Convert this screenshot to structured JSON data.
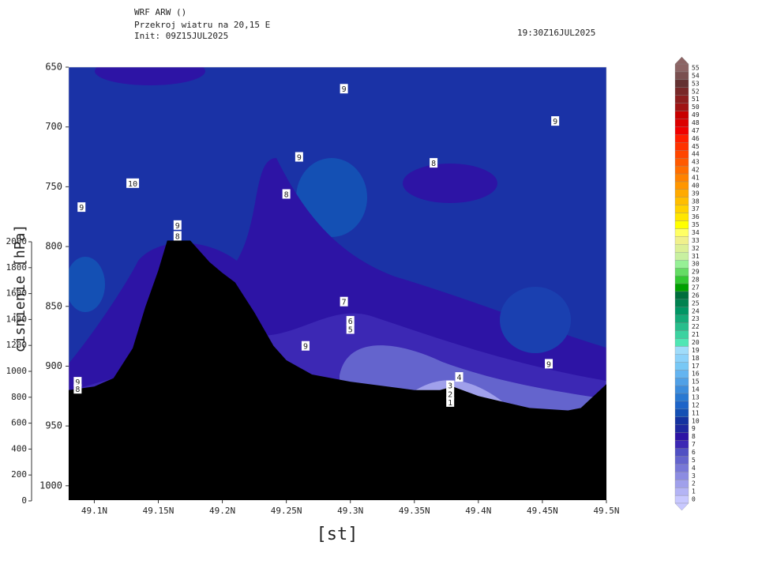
{
  "chart_data": {
    "type": "contour",
    "header": [
      "WRF ARW ()",
      "Przekroj wiatru na 20,15 E",
      "Init: 09Z15JUL2025"
    ],
    "valid_time": "19:30Z16JUL2025",
    "xlabel": "[st]",
    "ylabel": "cisnienie [hPa]",
    "xlim": [
      49.08,
      49.5
    ],
    "xticks": [
      {
        "value": 49.1,
        "label": "49.1N"
      },
      {
        "value": 49.15,
        "label": "49.15N"
      },
      {
        "value": 49.2,
        "label": "49.2N"
      },
      {
        "value": 49.25,
        "label": "49.25N"
      },
      {
        "value": 49.3,
        "label": "49.3N"
      },
      {
        "value": 49.35,
        "label": "49.35N"
      },
      {
        "value": 49.4,
        "label": "49.4N"
      },
      {
        "value": 49.45,
        "label": "49.45N"
      },
      {
        "value": 49.5,
        "label": "49.5N"
      }
    ],
    "ylim": [
      650,
      1012
    ],
    "yticks": [
      650,
      700,
      750,
      800,
      850,
      900,
      950,
      1000
    ],
    "y2lim": [
      0,
      2000
    ],
    "y2ticks": [
      0,
      200,
      400,
      600,
      800,
      1000,
      1200,
      1400,
      1600,
      1800,
      2000
    ],
    "terrain": {
      "color": "#000000",
      "x": [
        49.08,
        49.1,
        49.115,
        49.13,
        49.14,
        49.15,
        49.157,
        49.175,
        49.19,
        49.2,
        49.21,
        49.225,
        49.24,
        49.25,
        49.27,
        49.3,
        49.35,
        49.37,
        49.38,
        49.4,
        49.44,
        49.47,
        49.48,
        49.5
      ],
      "values": [
        920,
        917,
        910,
        885,
        850,
        820,
        795,
        795,
        813,
        822,
        830,
        855,
        883,
        895,
        907,
        913,
        920,
        920,
        917,
        925,
        935,
        937,
        935,
        915
      ]
    },
    "contour_labels": [
      {
        "value": 9,
        "x": 49.295,
        "y": 668
      },
      {
        "value": 9,
        "x": 49.46,
        "y": 695
      },
      {
        "value": 9,
        "x": 49.26,
        "y": 725
      },
      {
        "value": 8,
        "x": 49.365,
        "y": 730
      },
      {
        "value": 10,
        "x": 49.13,
        "y": 747
      },
      {
        "value": 9,
        "x": 49.09,
        "y": 767
      },
      {
        "value": 8,
        "x": 49.25,
        "y": 756
      },
      {
        "value": 9,
        "x": 49.165,
        "y": 782
      },
      {
        "value": 8,
        "x": 49.165,
        "y": 791
      },
      {
        "value": 7,
        "x": 49.295,
        "y": 846
      },
      {
        "value": 6,
        "x": 49.3,
        "y": 862
      },
      {
        "value": 5,
        "x": 49.3,
        "y": 869
      },
      {
        "value": 9,
        "x": 49.265,
        "y": 883
      },
      {
        "value": 9,
        "x": 49.455,
        "y": 898
      },
      {
        "value": 4,
        "x": 49.385,
        "y": 909
      },
      {
        "value": 3,
        "x": 49.378,
        "y": 916
      },
      {
        "value": 2,
        "x": 49.378,
        "y": 923
      },
      {
        "value": 1,
        "x": 49.378,
        "y": 930
      },
      {
        "value": 9,
        "x": 49.087,
        "y": 913
      },
      {
        "value": 8,
        "x": 49.087,
        "y": 919
      }
    ],
    "levels": [
      0,
      1,
      2,
      3,
      4,
      5,
      6,
      7,
      8,
      9,
      10,
      11,
      12,
      13,
      14,
      15,
      16,
      17,
      18,
      19,
      20,
      21,
      22,
      23,
      24,
      25,
      26,
      27,
      28,
      29,
      30,
      31,
      32,
      33,
      34,
      35,
      36,
      37,
      38,
      39,
      40,
      41,
      42,
      43,
      44,
      45,
      46,
      47,
      48,
      49,
      50,
      51,
      52,
      53,
      54,
      55
    ],
    "colors": [
      "#c8c8ff",
      "#b4b4f5",
      "#a0a0eb",
      "#8c8ce1",
      "#7878d7",
      "#6464cd",
      "#5050c3",
      "#3c28b4",
      "#2d14a5",
      "#1e28a0",
      "#1432a0",
      "#1450b4",
      "#1e64c8",
      "#2878d2",
      "#3c8cdc",
      "#50a0e6",
      "#64b4f0",
      "#78c8f5",
      "#8cd2fa",
      "#a0dcfa",
      "#50e6b4",
      "#3cd2a0",
      "#28be8c",
      "#14aa78",
      "#009664",
      "#008250",
      "#006e3c",
      "#00a000",
      "#32c832",
      "#64dc64",
      "#96f096",
      "#c8f0a0",
      "#dcf096",
      "#f0f08c",
      "#ffff64",
      "#ffff00",
      "#ffe600",
      "#ffd200",
      "#ffbe00",
      "#ffaa00",
      "#ff9600",
      "#ff8200",
      "#ff6e00",
      "#ff5a00",
      "#ff4600",
      "#ff3200",
      "#ff1e00",
      "#f00000",
      "#dc0000",
      "#c80000",
      "#a01414",
      "#8c1e1e",
      "#782828",
      "#643232",
      "#7a5050",
      "#8c6464"
    ]
  }
}
